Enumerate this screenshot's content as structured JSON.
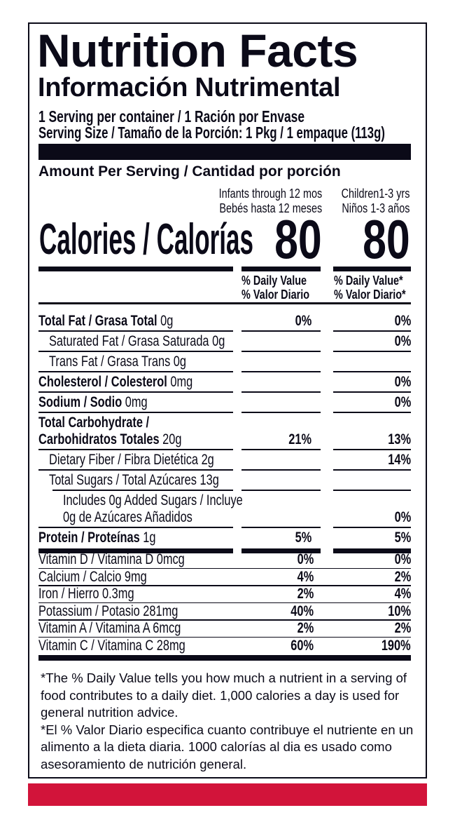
{
  "title": "Nutrition Facts",
  "subtitle": "Información Nutrimental",
  "servings_per_container": "1 Serving per container  / 1 Ración por Envase",
  "serving_size": "Serving Size / Tamaño de la Porción: 1 Pkg / 1 empaque  (113g)",
  "amount_per_serving": "Amount Per Serving  /  Cantidad por porción",
  "columns": [
    {
      "line1": "Infants through 12 mos",
      "line2": "Bebés hasta 12 meses",
      "calories": "80",
      "dv1": "% Daily Value",
      "dv2": "% Valor Diario"
    },
    {
      "line1": "Children1-3 yrs",
      "line2": "Niños 1-3 años",
      "calories": "80",
      "dv1": "% Daily Value*",
      "dv2": "% Valor Diario*"
    }
  ],
  "calories_label": "Calories / Calorías",
  "nutrients": [
    {
      "name": "Total Fat / Grasa Total",
      "amount": "0g",
      "bold": true,
      "indent": 0,
      "dv": [
        "0%",
        "0%"
      ]
    },
    {
      "name": "Saturated Fat / Grasa Saturada",
      "amount": "0g",
      "bold": false,
      "indent": 1,
      "dv": [
        "",
        "0%"
      ]
    },
    {
      "name": "Trans Fat /  Grasa Trans",
      "amount": "0g",
      "bold": false,
      "indent": 1,
      "dv": [
        "",
        ""
      ]
    },
    {
      "name": "Cholesterol / Colesterol",
      "amount": "0mg",
      "bold": true,
      "indent": 0,
      "dv": [
        "",
        "0%"
      ]
    },
    {
      "name": "Sodium / Sodio",
      "amount": "0mg",
      "bold": true,
      "indent": 0,
      "dv": [
        "",
        "0%"
      ]
    },
    {
      "name": "Total Carbohydrate / Carbohidratos Totales",
      "amount": "20g",
      "bold": true,
      "indent": 0,
      "dv": [
        "21%",
        "13%"
      ]
    },
    {
      "name": "Dietary Fiber / Fibra Dietética",
      "amount": "2g",
      "bold": false,
      "indent": 1,
      "dv": [
        "",
        "14%"
      ]
    },
    {
      "name": "Total Sugars / Total Azúcares",
      "amount": "13g",
      "bold": false,
      "indent": 1,
      "dv": [
        "",
        ""
      ]
    },
    {
      "name": "Includes 0g Added Sugars / Incluye 0g de Azúcares Añadidos",
      "amount": "",
      "bold": false,
      "indent": 2,
      "dv": [
        "",
        "0%"
      ]
    },
    {
      "name": "Protein / Proteínas",
      "amount": "1g",
      "bold": true,
      "indent": 0,
      "dv": [
        "5%",
        "5%"
      ]
    }
  ],
  "vitamins": [
    {
      "name": "Vitamin D / Vitamina D 0mcg",
      "dv": [
        "0%",
        "0%"
      ]
    },
    {
      "name": "Calcium / Calcio 9mg",
      "dv": [
        "4%",
        "2%"
      ]
    },
    {
      "name": "Iron / Hierro 0.3mg",
      "dv": [
        "2%",
        "4%"
      ]
    },
    {
      "name": "Potassium / Potasio 281mg",
      "dv": [
        "40%",
        "10%"
      ]
    },
    {
      "name": "Vitamin A / Vitamina A 6mcg",
      "dv": [
        "2%",
        "2%"
      ]
    },
    {
      "name": "Vitamin C / Vitamina C 28mg",
      "dv": [
        "60%",
        "190%"
      ]
    }
  ],
  "footnote_en": "*The % Daily Value tells you how much a nutrient in a serving of food contributes to a daily diet.  1,000 calories a day is used for general nutrition advice.",
  "footnote_es": "*El % Valor Diario especifica cuanto contribuye el nutriente en un alimento a la dieta diaria. 1000 calorías al dia es usado como asesoramiento de nutrición general.",
  "colors": {
    "ink": "#0b0a18",
    "accent_bar": "#d2143a"
  }
}
